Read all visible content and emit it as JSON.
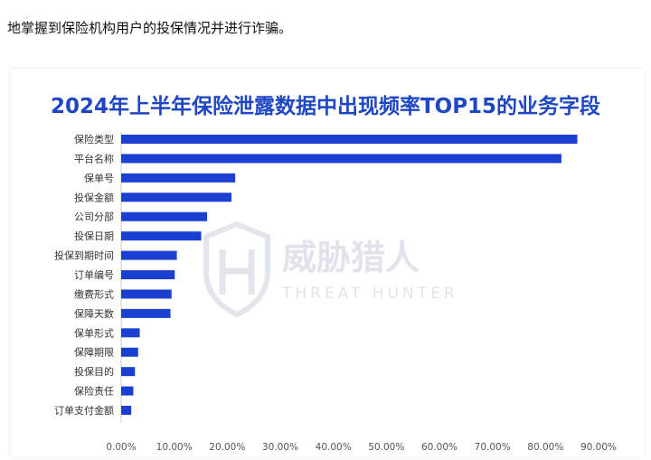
{
  "page": {
    "intro_text": "地掌握到保险机构用户的投保情况并进行诈骗。"
  },
  "colors": {
    "title": "#1f47c4",
    "bar": "#1a3fd1",
    "axis": "#cccccc",
    "watermark": "#dde1ea"
  },
  "watermark": {
    "logo_icon": "threat-hunter-logo-icon",
    "name_cn": "威胁猎人",
    "name_en": "THREAT HUNTER"
  },
  "chart_data": {
    "type": "bar",
    "orientation": "horizontal",
    "title": "2024年上半年保险泄露数据中出现频率TOP15的业务字段",
    "categories": [
      "保险类型",
      "平台名称",
      "保单号",
      "投保金额",
      "公司分部",
      "投保日期",
      "投保到期时间",
      "订单编号",
      "缴费形式",
      "保障天数",
      "保单形式",
      "保障期限",
      "投保目的",
      "保险责任",
      "订单支付金额"
    ],
    "values": [
      86.0,
      83.0,
      21.5,
      20.8,
      16.2,
      15.1,
      10.5,
      10.1,
      9.5,
      9.3,
      3.5,
      3.2,
      2.6,
      2.3,
      1.9
    ],
    "unit": "%",
    "xlim": [
      0,
      90
    ],
    "xticks": [
      "0.00%",
      "10.00%",
      "20.00%",
      "30.00%",
      "40.00%",
      "50.00%",
      "60.00%",
      "70.00%",
      "80.00%",
      "90.00%"
    ],
    "grid": false,
    "legend": "none"
  }
}
